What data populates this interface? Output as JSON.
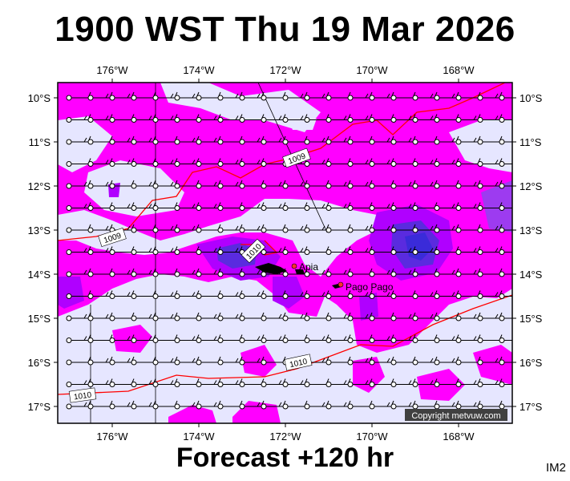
{
  "title": "1900 WST Thu 19 Mar 2026",
  "footer": "Forecast +120 hr",
  "image_code": "IM2",
  "copyright": "Copyright metvuw.com",
  "lon_labels": [
    "176°W",
    "174°W",
    "172°W",
    "170°W",
    "168°W"
  ],
  "lat_labels": [
    "10°S",
    "11°S",
    "12°S",
    "13°S",
    "14°S",
    "15°S",
    "16°S",
    "17°S"
  ],
  "places": [
    "Apia",
    "Pago Pago"
  ],
  "isobar_labels": [
    "1009",
    "1009",
    "1010",
    "1010",
    "1010"
  ],
  "colors": {
    "light": "#e6e6ff",
    "magenta": "#ff00ff",
    "purple": "#b000ff",
    "violet": "#8a2be2",
    "blue": "#4b2bd9",
    "isobar": "#ff0000"
  }
}
